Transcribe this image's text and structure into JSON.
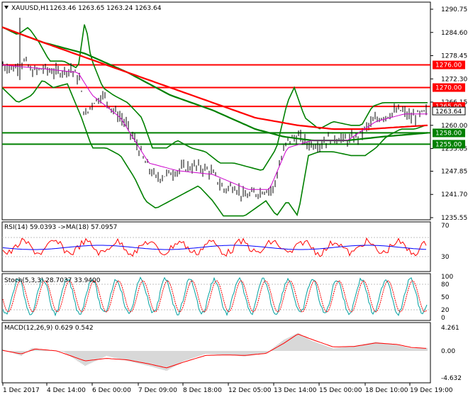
{
  "colors": {
    "bg": "#ffffff",
    "frame": "#000000",
    "red": "#ff0000",
    "green": "#008000",
    "bb": "#008000",
    "ma": "#0000cc",
    "macd_hist": "#b0b0b0",
    "macd_sig": "#ff0000",
    "stoch_main": "#00a0a0",
    "stoch_sig": "#ff0000",
    "rsi": "#ff0000",
    "rsi_ma": "#0000ff"
  },
  "main_panel": {
    "symbol_label": "XAUUSD,H1",
    "ohlc": "1263.46 1263.65 1263.24 1263.64",
    "price_ticks": [
      "1290.75",
      "1284.60",
      "1278.45",
      "1272.30",
      "1266.15",
      "1260.00",
      "1253.85",
      "1247.85",
      "1241.70",
      "1235.55"
    ],
    "current_price": "1263.64",
    "levels": [
      {
        "price": "1276.00",
        "color": "#ff0000"
      },
      {
        "price": "1270.00",
        "color": "#ff0000"
      },
      {
        "price": "1265.00",
        "color": "#ff0000"
      },
      {
        "price": "1258.00",
        "color": "#008000"
      },
      {
        "price": "1255.00",
        "color": "#008000"
      }
    ]
  },
  "rsi_panel": {
    "label": "RSI(14) 59.0393  ->MA(18) 57.0957",
    "ticks": [
      "70",
      "30"
    ]
  },
  "stoch_panel": {
    "label": "Stoch(5,3,3) 28.7037 33.9400",
    "ticks": [
      "100",
      "80",
      "50",
      "20",
      "0"
    ]
  },
  "macd_panel": {
    "label": "MACD(12,26,9) 0.629 0.542",
    "ticks": [
      "4.261",
      "0.00",
      "-4.632"
    ]
  },
  "time_axis": [
    "1 Dec 2017",
    "4 Dec 14:00",
    "6 Dec 00:00",
    "7 Dec 09:00",
    "8 Dec 18:00",
    "12 Dec 05:00",
    "13 Dec 14:00",
    "15 Dec 00:00",
    "18 Dec 10:00",
    "19 Dec 19:00"
  ]
}
